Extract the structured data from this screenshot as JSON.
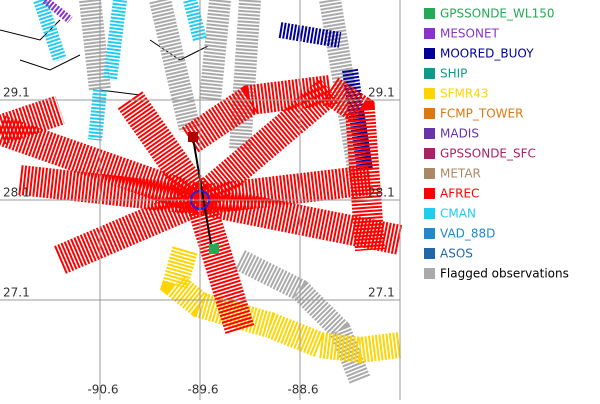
{
  "map": {
    "lat_labels": [
      "29.1",
      "28.1",
      "27.1"
    ],
    "lon_labels": [
      "-90.6",
      "-89.6",
      "-88.6"
    ],
    "legend": [
      {
        "label": "GPSSONDE_WL150",
        "color": "#22aa55"
      },
      {
        "label": "MESONET",
        "color": "#8833cc"
      },
      {
        "label": "MOORED_BUOY",
        "color": "#000099"
      },
      {
        "label": "SHIP",
        "color": "#119988"
      },
      {
        "label": "SFMR43",
        "color": "#ffd400"
      },
      {
        "label": "FCMP_TOWER",
        "color": "#dd7711"
      },
      {
        "label": "MADIS",
        "color": "#6633aa"
      },
      {
        "label": "GPSSONDE_SFC",
        "color": "#aa2266"
      },
      {
        "label": "METAR",
        "color": "#aa8866"
      },
      {
        "label": "AFREC",
        "color": "#ff0000"
      },
      {
        "label": "CMAN",
        "color": "#22ccee"
      },
      {
        "label": "VAD_88D",
        "color": "#2288cc"
      },
      {
        "label": "ASOS",
        "color": "#2266aa"
      },
      {
        "label": "Flagged observations",
        "color": "#aaaaaa"
      }
    ]
  }
}
